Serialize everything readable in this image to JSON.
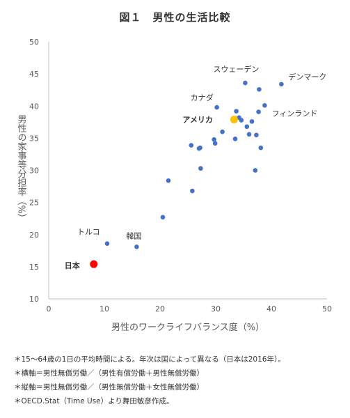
{
  "chart_data": {
    "type": "scatter",
    "title": "図１　男性の生活比較",
    "xlabel": "男性のワークライフバランス度（%）",
    "ylabel": "男性の家事等分担率（%）",
    "xlim": [
      0,
      50
    ],
    "ylim": [
      10,
      50
    ],
    "xticks": [
      "0",
      "10",
      "20",
      "30",
      "40",
      "50"
    ],
    "yticks": [
      "10",
      "15",
      "20",
      "25",
      "30",
      "35",
      "40",
      "45",
      "50"
    ],
    "grid": false,
    "series": [
      {
        "color": "#4472c4",
        "points": [
          {
            "x": 10.5,
            "y": 18.6,
            "label": "トルコ"
          },
          {
            "x": 15.8,
            "y": 18.1,
            "label": "韓国"
          },
          {
            "x": 20.5,
            "y": 22.7
          },
          {
            "x": 21.5,
            "y": 28.4
          },
          {
            "x": 25.6,
            "y": 33.9
          },
          {
            "x": 25.8,
            "y": 26.8
          },
          {
            "x": 27.0,
            "y": 33.4
          },
          {
            "x": 27.2,
            "y": 33.5
          },
          {
            "x": 27.3,
            "y": 30.3
          },
          {
            "x": 29.7,
            "y": 34.8
          },
          {
            "x": 29.9,
            "y": 34.2
          },
          {
            "x": 30.2,
            "y": 39.8,
            "label": "カナダ"
          },
          {
            "x": 31.2,
            "y": 36.0
          },
          {
            "x": 33.5,
            "y": 34.9
          },
          {
            "x": 33.7,
            "y": 39.2
          },
          {
            "x": 34.2,
            "y": 38.2
          },
          {
            "x": 34.6,
            "y": 37.8
          },
          {
            "x": 35.3,
            "y": 43.6,
            "label": "スウェーデン"
          },
          {
            "x": 35.6,
            "y": 36.8
          },
          {
            "x": 36.0,
            "y": 35.6
          },
          {
            "x": 36.5,
            "y": 37.6
          },
          {
            "x": 37.1,
            "y": 30.0
          },
          {
            "x": 37.3,
            "y": 35.5
          },
          {
            "x": 37.7,
            "y": 39.1,
            "label": "フィンランド"
          },
          {
            "x": 37.8,
            "y": 42.6
          },
          {
            "x": 38.1,
            "y": 33.5
          },
          {
            "x": 38.8,
            "y": 40.1
          },
          {
            "x": 41.8,
            "y": 43.4,
            "label": "デンマーク"
          }
        ]
      },
      {
        "color": "#ffc000",
        "points": [
          {
            "x": 33.3,
            "y": 37.9,
            "label": "アメリカ"
          }
        ]
      },
      {
        "color": "#ff0000",
        "points": [
          {
            "x": 8.1,
            "y": 15.4,
            "label": "日本"
          }
        ]
      }
    ]
  },
  "notes": [
    "＊15〜64歳の1日の平均時間による。年次は国によって異なる（日本は2016年）。",
    "＊横軸＝男性無償労働／（男性有償労働＋男性無償労働）",
    "＊縦軸＝男性無償労働／（男性無償労働＋女性無償労働）",
    "＊OECD.Stat（Time Use）より舞田敏彦作成。"
  ]
}
